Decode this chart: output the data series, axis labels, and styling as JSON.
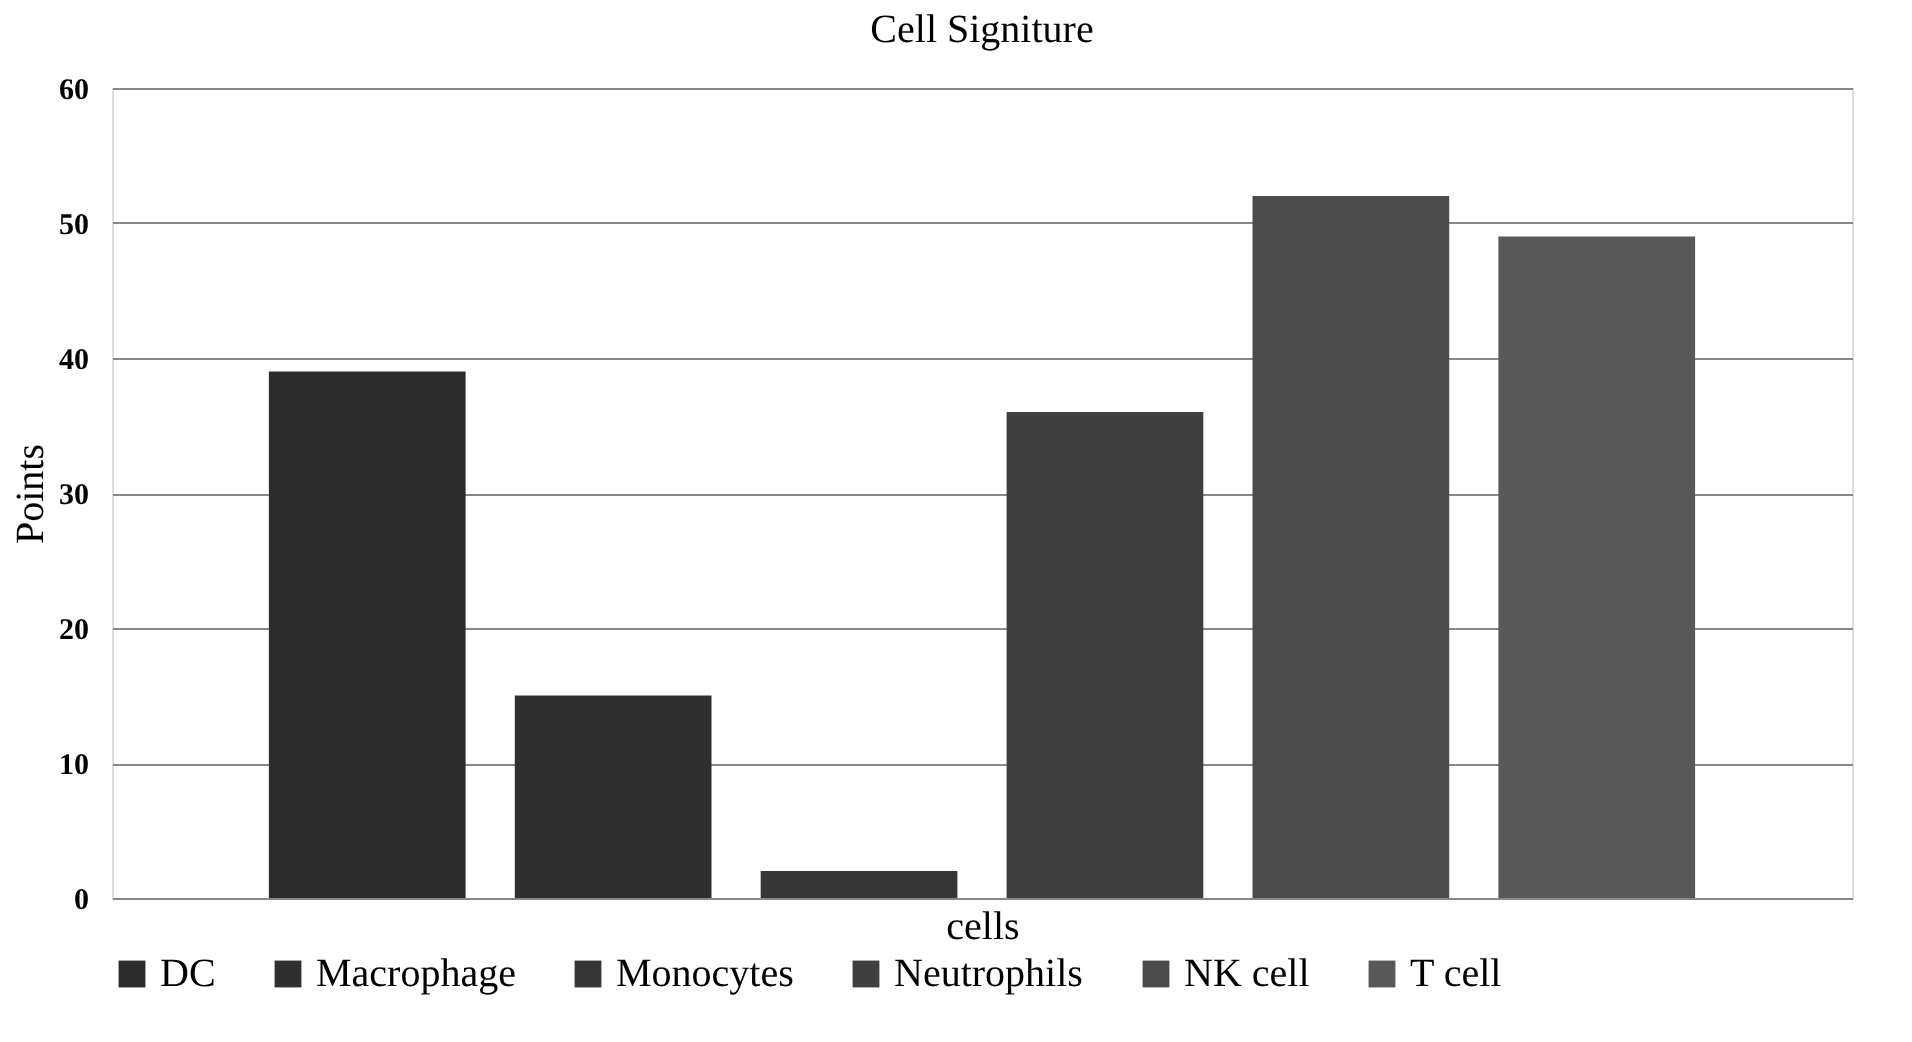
{
  "chart_data": {
    "type": "bar",
    "title": "Cell Signiture",
    "xlabel": "cells",
    "ylabel": "Points",
    "categories": [
      null
    ],
    "series": [
      {
        "name": "DC",
        "color": "#2b2b2b",
        "values": [
          39
        ]
      },
      {
        "name": "Macrophage",
        "color": "#303030",
        "values": [
          15
        ]
      },
      {
        "name": "Monocytes",
        "color": "#363636",
        "values": [
          2
        ]
      },
      {
        "name": "Neutrophils",
        "color": "#3f3f3f",
        "values": [
          36
        ]
      },
      {
        "name": "NK cell",
        "color": "#4b4b4b",
        "values": [
          52
        ]
      },
      {
        "name": "T cell",
        "color": "#585858",
        "values": [
          49
        ]
      }
    ],
    "ylim": [
      0,
      60
    ],
    "yticks": [
      0,
      10,
      20,
      30,
      40,
      50,
      60
    ],
    "grid": "y",
    "legend": "bottom",
    "tick_labels": "y"
  }
}
